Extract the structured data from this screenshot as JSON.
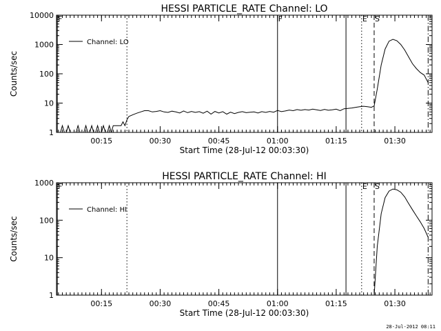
{
  "chart_data": [
    {
      "type": "line",
      "title": "HESSI PARTICLE_RATE Channel: LO",
      "xlabel": "Start Time (28-Jul-12 00:03:30)",
      "ylabel": "Counts/sec",
      "x_units": "minutes after 00:00 UT",
      "xlim": [
        3.5,
        99.5
      ],
      "ylim": [
        1,
        10000
      ],
      "yscale": "log",
      "grid": false,
      "legend": "top-left",
      "xticks": [
        {
          "x": 15,
          "label": "00:15"
        },
        {
          "x": 30,
          "label": "00:30"
        },
        {
          "x": 45,
          "label": "00:45"
        },
        {
          "x": 60,
          "label": "01:00"
        },
        {
          "x": 75,
          "label": "01:15"
        },
        {
          "x": 90,
          "label": "01:30"
        }
      ],
      "yticks": [
        {
          "y": 1,
          "label": "1"
        },
        {
          "y": 10,
          "label": "10"
        },
        {
          "y": 100,
          "label": "100"
        },
        {
          "y": 1000,
          "label": "1000"
        },
        {
          "y": 10000,
          "label": "10000"
        }
      ],
      "event_lines": [
        {
          "x": 3.7,
          "style": "solid",
          "label": "F"
        },
        {
          "x": 21.5,
          "style": "dotted",
          "label": ""
        },
        {
          "x": 60,
          "style": "solid",
          "label": "F"
        },
        {
          "x": 77.5,
          "style": "solid",
          "label": ""
        },
        {
          "x": 81.5,
          "style": "dotted",
          "label": "E"
        },
        {
          "x": 84.7,
          "style": "dashed",
          "label": "S"
        },
        {
          "x": 98.5,
          "style": "dashdot",
          "label": ""
        }
      ],
      "series": [
        {
          "name": "Channel: LO",
          "x": [
            3.5,
            4.5,
            5.0,
            5.5,
            6.0,
            6.5,
            7.0,
            7.5,
            8.0,
            8.5,
            9.0,
            9.5,
            10.0,
            10.5,
            11.0,
            11.5,
            12.0,
            12.5,
            13.0,
            13.5,
            14.0,
            14.5,
            15.0,
            15.5,
            16.0,
            16.5,
            17.0,
            17.5,
            18.0,
            18.5,
            19.0,
            19.5,
            20.0,
            20.5,
            21.0,
            21.5,
            22,
            23,
            24,
            25,
            26,
            27,
            28,
            29,
            30,
            31,
            32,
            33,
            34,
            35,
            36,
            37,
            38,
            39,
            40,
            41,
            42,
            43,
            44,
            45,
            46,
            47,
            48,
            49,
            50,
            51,
            52,
            53,
            54,
            55,
            56,
            57,
            58,
            59,
            60,
            61,
            62,
            63,
            64,
            65,
            66,
            67,
            68,
            69,
            70,
            71,
            72,
            73,
            74,
            75,
            76,
            77,
            78,
            79,
            80,
            81,
            82,
            83,
            84,
            84.7,
            85.5,
            86.5,
            87.5,
            88.5,
            89.5,
            90.5,
            91.5,
            92.5,
            93.5,
            94.5,
            95.5,
            96.5,
            97.5,
            98.5
          ],
          "y": [
            1,
            1,
            1.7,
            1,
            1,
            1.7,
            1,
            1,
            1,
            1,
            1.7,
            1,
            1,
            1,
            1.7,
            1,
            1,
            1.7,
            1,
            1,
            1.7,
            1,
            1,
            1.7,
            1,
            1,
            1.7,
            1,
            1.7,
            1.7,
            1.7,
            1.7,
            1.7,
            2.3,
            1.7,
            2.7,
            3.5,
            4,
            4.5,
            5,
            5.5,
            5.5,
            5,
            5.2,
            5.5,
            5,
            4.8,
            5.3,
            5,
            4.6,
            5.4,
            4.7,
            5.2,
            4.8,
            5.1,
            4.5,
            5.3,
            4.2,
            5.2,
            4.6,
            5.1,
            4.2,
            4.9,
            4.4,
            4.8,
            5.1,
            4.7,
            4.9,
            5,
            4.6,
            5.1,
            4.8,
            5.2,
            4.9,
            5.6,
            5.1,
            5.4,
            5.8,
            5.5,
            6,
            5.7,
            6,
            5.8,
            6.2,
            5.9,
            5.6,
            6.1,
            5.7,
            5.9,
            6.2,
            5.5,
            6.4,
            6.6,
            6.8,
            7.2,
            7.5,
            7.8,
            7.5,
            7.2,
            8,
            30,
            200,
            700,
            1300,
            1500,
            1350,
            1000,
            650,
            380,
            220,
            150,
            110,
            90,
            50
          ]
        }
      ]
    },
    {
      "type": "line",
      "title": "HESSI PARTICLE_RATE Channel: HI",
      "xlabel": "Start Time (28-Jul-12 00:03:30)",
      "ylabel": "Counts/sec",
      "x_units": "minutes after 00:00 UT",
      "xlim": [
        3.5,
        99.5
      ],
      "ylim": [
        1,
        1000
      ],
      "yscale": "log",
      "grid": false,
      "legend": "top-left",
      "xticks": [
        {
          "x": 15,
          "label": "00:15"
        },
        {
          "x": 30,
          "label": "00:30"
        },
        {
          "x": 45,
          "label": "00:45"
        },
        {
          "x": 60,
          "label": "01:00"
        },
        {
          "x": 75,
          "label": "01:15"
        },
        {
          "x": 90,
          "label": "01:30"
        }
      ],
      "yticks": [
        {
          "y": 1,
          "label": "1"
        },
        {
          "y": 10,
          "label": "10"
        },
        {
          "y": 100,
          "label": "100"
        },
        {
          "y": 1000,
          "label": "1000"
        }
      ],
      "event_lines": [
        {
          "x": 3.7,
          "style": "solid",
          "label": "F"
        },
        {
          "x": 21.5,
          "style": "dotted",
          "label": ""
        },
        {
          "x": 60,
          "style": "solid",
          "label": ""
        },
        {
          "x": 77.5,
          "style": "solid",
          "label": ""
        },
        {
          "x": 81.5,
          "style": "dotted",
          "label": "E"
        },
        {
          "x": 84.7,
          "style": "dashed",
          "label": "S"
        },
        {
          "x": 98.5,
          "style": "dashdot",
          "label": ""
        }
      ],
      "series": [
        {
          "name": "Channel: HI",
          "x": [
            84.7,
            85.5,
            86.5,
            87.5,
            88.5,
            89.5,
            90.5,
            91.5,
            92.5,
            93.5,
            94.5,
            95.5,
            96.5,
            97.5,
            98.5
          ],
          "y": [
            1,
            20,
            150,
            400,
            600,
            680,
            650,
            560,
            420,
            280,
            190,
            130,
            90,
            60,
            35
          ]
        }
      ]
    }
  ],
  "footer": {
    "stamp": "28-Jul-2012 08:11"
  }
}
